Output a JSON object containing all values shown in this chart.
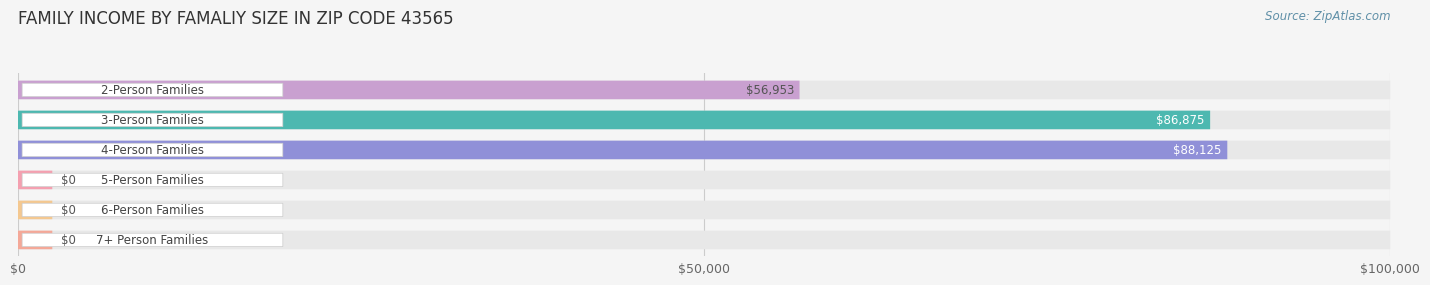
{
  "title": "FAMILY INCOME BY FAMALIY SIZE IN ZIP CODE 43565",
  "source": "Source: ZipAtlas.com",
  "categories": [
    "2-Person Families",
    "3-Person Families",
    "4-Person Families",
    "5-Person Families",
    "6-Person Families",
    "7+ Person Families"
  ],
  "values": [
    56953,
    86875,
    88125,
    0,
    0,
    0
  ],
  "bar_colors": [
    "#c9a0d0",
    "#4db8b0",
    "#9090d8",
    "#f4a0b0",
    "#f4c890",
    "#f4a898"
  ],
  "label_colors": [
    "#555555",
    "#ffffff",
    "#ffffff",
    "#555555",
    "#555555",
    "#555555"
  ],
  "xlim": [
    0,
    100000
  ],
  "xticks": [
    0,
    50000,
    100000
  ],
  "xtick_labels": [
    "$0",
    "$50,000",
    "$100,000"
  ],
  "background_color": "#f5f5f5",
  "bar_background_color": "#e8e8e8",
  "title_fontsize": 12,
  "label_fontsize": 8.5,
  "value_fontsize": 8.5,
  "source_fontsize": 8.5
}
